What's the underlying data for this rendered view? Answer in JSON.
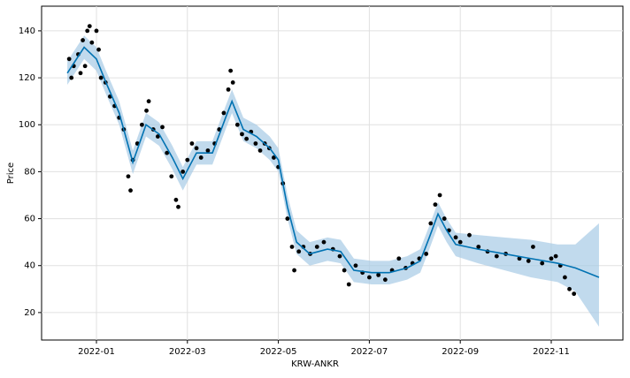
{
  "chart_data": {
    "type": "forecast",
    "xlabel": "KRW-ANKR",
    "ylabel": "Price",
    "xlim": [
      -0.206,
      12.576
    ],
    "ylim": [
      8.3,
      150.5
    ],
    "xticks": [
      {
        "value": 1,
        "label": "2022-01"
      },
      {
        "value": 3,
        "label": "2022-03"
      },
      {
        "value": 5,
        "label": "2022-05"
      },
      {
        "value": 7,
        "label": "2022-07"
      },
      {
        "value": 9,
        "label": "2022-09"
      },
      {
        "value": 11,
        "label": "2022-11"
      }
    ],
    "yticks": [
      20,
      40,
      60,
      80,
      100,
      120,
      140
    ],
    "grid": true,
    "observed": {
      "color": "#000000",
      "x": [
        0.4,
        0.45,
        0.5,
        0.6,
        0.65,
        0.7,
        0.75,
        0.8,
        0.85,
        0.9,
        1.0,
        1.05,
        1.1,
        1.2,
        1.3,
        1.4,
        1.5,
        1.6,
        1.7,
        1.75,
        1.8,
        1.9,
        2.0,
        2.1,
        2.15,
        2.25,
        2.35,
        2.45,
        2.55,
        2.65,
        2.75,
        2.8,
        2.9,
        3.0,
        3.1,
        3.2,
        3.3,
        3.45,
        3.6,
        3.7,
        3.8,
        3.9,
        3.95,
        4.0,
        4.1,
        4.2,
        4.3,
        4.4,
        4.5,
        4.6,
        4.7,
        4.8,
        4.9,
        5.0,
        5.1,
        5.2,
        5.3,
        5.35,
        5.45,
        5.55,
        5.7,
        5.85,
        6.0,
        6.2,
        6.35,
        6.45,
        6.55,
        6.7,
        6.85,
        7.0,
        7.2,
        7.35,
        7.5,
        7.65,
        7.8,
        7.95,
        8.1,
        8.25,
        8.35,
        8.45,
        8.55,
        8.65,
        8.75,
        8.9,
        9.0,
        9.2,
        9.4,
        9.6,
        9.8,
        10.0,
        10.3,
        10.5,
        10.6,
        10.8,
        11.0,
        11.1,
        11.2,
        11.3,
        11.4,
        11.5
      ],
      "values": [
        128,
        120,
        125,
        130,
        122,
        136,
        125,
        140,
        142,
        135,
        140,
        132,
        120,
        118,
        112,
        108,
        103,
        98,
        78,
        72,
        85,
        92,
        100,
        106,
        110,
        98,
        95,
        99,
        88,
        78,
        68,
        65,
        80,
        85,
        92,
        90,
        86,
        89,
        92,
        98,
        105,
        115,
        123,
        118,
        100,
        96,
        94,
        97,
        92,
        89,
        92,
        90,
        86,
        82,
        75,
        60,
        48,
        38,
        46,
        48,
        45,
        48,
        50,
        47,
        44,
        38,
        32,
        40,
        37,
        35,
        36,
        34,
        38,
        43,
        39,
        41,
        43,
        45,
        58,
        66,
        70,
        60,
        55,
        52,
        50,
        53,
        48,
        46,
        44,
        45,
        43,
        42,
        48,
        41,
        43,
        44,
        40,
        35,
        30,
        28
      ]
    },
    "forecast": {
      "color": "#0072b2",
      "band_color": "#a6cbe6",
      "x": [
        0.36,
        0.73,
        1.0,
        1.21,
        1.5,
        1.8,
        2.09,
        2.38,
        2.67,
        2.9,
        3.2,
        3.55,
        3.84,
        3.98,
        4.23,
        4.52,
        4.81,
        5.0,
        5.2,
        5.4,
        5.69,
        6.08,
        6.37,
        6.66,
        7.05,
        7.44,
        7.83,
        8.12,
        8.32,
        8.51,
        8.7,
        8.9,
        9.39,
        9.97,
        10.55,
        11.14,
        11.53,
        12.05
      ],
      "values": [
        122,
        133,
        128,
        118,
        105,
        84,
        100,
        96,
        86,
        77,
        88,
        88,
        103,
        110,
        98,
        95,
        90,
        85,
        65,
        50,
        45,
        47,
        46,
        38,
        37,
        37,
        39,
        42,
        52,
        62,
        55,
        49,
        47,
        45,
        43,
        41,
        39,
        35
      ],
      "lower": [
        117,
        128,
        123,
        113,
        100,
        79,
        95,
        91,
        81,
        72,
        83,
        83,
        98,
        105,
        93,
        90,
        85,
        80,
        60,
        45,
        40,
        42,
        41,
        33,
        32,
        32,
        34,
        37,
        47,
        57,
        50,
        44,
        41,
        38,
        35,
        33,
        29,
        14
      ],
      "upper": [
        127,
        138,
        133,
        123,
        110,
        89,
        105,
        101,
        91,
        82,
        93,
        93,
        108,
        115,
        103,
        100,
        95,
        90,
        70,
        55,
        50,
        52,
        51,
        43,
        42,
        42,
        44,
        47,
        57,
        67,
        60,
        54,
        53,
        52,
        51,
        49,
        49,
        58
      ]
    }
  }
}
